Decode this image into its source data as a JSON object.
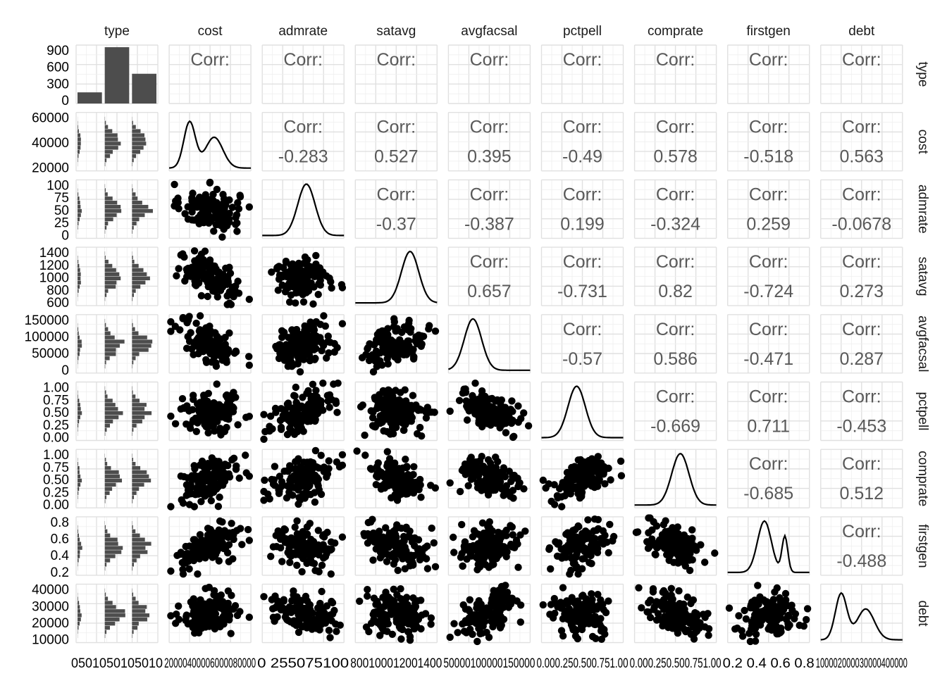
{
  "chart_data": {
    "type": "scatter",
    "title": "",
    "variables": [
      "type",
      "cost",
      "admrate",
      "satavg",
      "avgfacsal",
      "pctpell",
      "comprate",
      "firstgen",
      "debt"
    ],
    "col_labels": [
      "type",
      "cost",
      "admrate",
      "satavg",
      "avgfacsal",
      "pctpell",
      "comprate",
      "firstgen",
      "debt"
    ],
    "row_labels": [
      "type",
      "cost",
      "admrate",
      "satavg",
      "avgfacsal",
      "pctpell",
      "comprate",
      "firstgen",
      "debt"
    ],
    "corr_label": "Corr:",
    "correlations": [
      {
        "row": "cost",
        "col": "admrate",
        "value": "-0.283"
      },
      {
        "row": "cost",
        "col": "satavg",
        "value": "0.527"
      },
      {
        "row": "cost",
        "col": "avgfacsal",
        "value": "0.395"
      },
      {
        "row": "cost",
        "col": "pctpell",
        "value": "-0.49"
      },
      {
        "row": "cost",
        "col": "comprate",
        "value": "0.578"
      },
      {
        "row": "cost",
        "col": "firstgen",
        "value": "-0.518"
      },
      {
        "row": "cost",
        "col": "debt",
        "value": "0.563"
      },
      {
        "row": "admrate",
        "col": "satavg",
        "value": "-0.37"
      },
      {
        "row": "admrate",
        "col": "avgfacsal",
        "value": "-0.387"
      },
      {
        "row": "admrate",
        "col": "pctpell",
        "value": "0.199"
      },
      {
        "row": "admrate",
        "col": "comprate",
        "value": "-0.324"
      },
      {
        "row": "admrate",
        "col": "firstgen",
        "value": "0.259"
      },
      {
        "row": "admrate",
        "col": "debt",
        "value": "-0.0678"
      },
      {
        "row": "satavg",
        "col": "avgfacsal",
        "value": "0.657"
      },
      {
        "row": "satavg",
        "col": "pctpell",
        "value": "-0.731"
      },
      {
        "row": "satavg",
        "col": "comprate",
        "value": "0.82"
      },
      {
        "row": "satavg",
        "col": "firstgen",
        "value": "-0.724"
      },
      {
        "row": "satavg",
        "col": "debt",
        "value": "0.273"
      },
      {
        "row": "avgfacsal",
        "col": "pctpell",
        "value": "-0.57"
      },
      {
        "row": "avgfacsal",
        "col": "comprate",
        "value": "0.586"
      },
      {
        "row": "avgfacsal",
        "col": "firstgen",
        "value": "-0.471"
      },
      {
        "row": "avgfacsal",
        "col": "debt",
        "value": "0.287"
      },
      {
        "row": "pctpell",
        "col": "comprate",
        "value": "-0.669"
      },
      {
        "row": "pctpell",
        "col": "firstgen",
        "value": "0.711"
      },
      {
        "row": "pctpell",
        "col": "debt",
        "value": "-0.453"
      },
      {
        "row": "comprate",
        "col": "firstgen",
        "value": "-0.685"
      },
      {
        "row": "comprate",
        "col": "debt",
        "value": "0.512"
      },
      {
        "row": "firstgen",
        "col": "debt",
        "value": "-0.488"
      }
    ],
    "y_ticks": {
      "type": [
        "0",
        "300",
        "600",
        "900"
      ],
      "cost": [
        "20000",
        "40000",
        "60000"
      ],
      "admrate": [
        "0",
        "25",
        "50",
        "75",
        "100"
      ],
      "satavg": [
        "600",
        "800",
        "1000",
        "1200",
        "1400"
      ],
      "avgfacsal": [
        "0",
        "50000",
        "100000",
        "150000"
      ],
      "pctpell": [
        "0.00",
        "0.25",
        "0.50",
        "0.75",
        "1.00"
      ],
      "comprate": [
        "0.00",
        "0.25",
        "0.50",
        "0.75",
        "1.00"
      ],
      "firstgen": [
        "0.2",
        "0.4",
        "0.6",
        "0.8"
      ],
      "debt": [
        "10000",
        "20000",
        "30000",
        "40000"
      ]
    },
    "x_tick_text": [
      "0501050105010",
      "20000400006000080000",
      "0 255075100",
      "800100012001400",
      "50000100000150000",
      "0.000.250.500.751.00",
      "0.000.250.500.751.00",
      "0.2 0.4 0.6 0.8",
      "100002000030000400000"
    ],
    "type_counts": [
      210,
      1060,
      560
    ],
    "type_ylim": [
      0,
      1100
    ],
    "grid": true
  }
}
